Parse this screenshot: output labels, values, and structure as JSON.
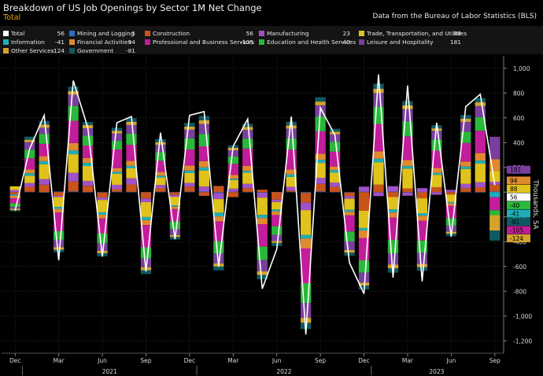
{
  "title": "Breakdown of US Job Openings by Sector 1M Net Change",
  "subtitle": "Total",
  "source": "Data from the Bureau of Labor Statistics (BLS)",
  "legend": [
    {
      "name": "Total",
      "value": "56",
      "color": "#ffffff"
    },
    {
      "name": "Mining and Logging",
      "value": "5",
      "color": "#2c6fbd"
    },
    {
      "name": "Construction",
      "value": "56",
      "color": "#c8541c"
    },
    {
      "name": "Manufacturing",
      "value": "23",
      "color": "#a052c8"
    },
    {
      "name": "Trade, Transportation, and Utilities",
      "value": "88",
      "color": "#e0c21c"
    },
    {
      "name": "Information",
      "value": "-41",
      "color": "#1eaeb8"
    },
    {
      "name": "Financial Activities",
      "value": "94",
      "color": "#e08a30"
    },
    {
      "name": "Professional and Business Services",
      "value": "-105",
      "color": "#c21d9a"
    },
    {
      "name": "Education and Health Services",
      "value": "-40",
      "color": "#2ab83a"
    },
    {
      "name": "Leisure and Hospitality",
      "value": "181",
      "color": "#7a3f9e"
    },
    {
      "name": "Other Services",
      "value": "-124",
      "color": "#d4a32a"
    },
    {
      "name": "Government",
      "value": "-81",
      "color": "#0f5a62"
    }
  ],
  "chart_data": {
    "type": "bar",
    "stacked": true,
    "ylabel": "Thousands, SA",
    "ylim": [
      -1300,
      1100
    ],
    "yticks": [
      -1200,
      -1000,
      -800,
      -600,
      -400,
      -200,
      0,
      200,
      400,
      600,
      800,
      1000
    ],
    "ytick_labels": [
      "-1,200",
      "-1,000",
      "-800",
      "-600",
      "-400",
      "-200",
      "0",
      "200",
      "400",
      "600",
      "800",
      "1,000"
    ],
    "month_labels": [
      "Dec",
      "Mar",
      "Jun",
      "Sep",
      "Dec",
      "Mar",
      "Jun",
      "Sep",
      "Dec",
      "Mar",
      "Jun",
      "Sep"
    ],
    "year_labels": [
      "2021",
      "2022",
      "2023"
    ],
    "categories": [
      "2020-12",
      "2021-01",
      "2021-02",
      "2021-03",
      "2021-04",
      "2021-05",
      "2021-06",
      "2021-07",
      "2021-08",
      "2021-09",
      "2021-10",
      "2021-11",
      "2021-12",
      "2022-01",
      "2022-02",
      "2022-03",
      "2022-04",
      "2022-05",
      "2022-06",
      "2022-07",
      "2022-08",
      "2022-09",
      "2022-10",
      "2022-11",
      "2022-12",
      "2023-01",
      "2023-02",
      "2023-03",
      "2023-04",
      "2023-05",
      "2023-06",
      "2023-07",
      "2023-08",
      "2023-09"
    ],
    "series": [
      {
        "name": "Mining and Logging",
        "values": [
          2,
          3,
          -4,
          5,
          6,
          1,
          -3,
          4,
          2,
          -1,
          3,
          -2,
          4,
          5,
          -6,
          3,
          2,
          -4,
          1,
          3,
          -5,
          6,
          2,
          -3,
          4,
          -2,
          3,
          -4,
          2,
          -1,
          3,
          2,
          -3,
          5
        ]
      },
      {
        "name": "Construction",
        "values": [
          -20,
          40,
          60,
          -30,
          80,
          50,
          -40,
          20,
          60,
          -50,
          30,
          -20,
          40,
          -30,
          50,
          -40,
          30,
          20,
          -60,
          10,
          -80,
          60,
          40,
          -30,
          -150,
          60,
          -40,
          30,
          -50,
          40,
          -20,
          30,
          40,
          56
        ]
      },
      {
        "name": "Manufacturing",
        "values": [
          15,
          30,
          45,
          -10,
          70,
          40,
          -20,
          35,
          50,
          -30,
          25,
          -15,
          30,
          40,
          -50,
          25,
          35,
          -40,
          -20,
          30,
          -60,
          50,
          35,
          -20,
          40,
          -30,
          45,
          -25,
          30,
          -20,
          15,
          35,
          40,
          23
        ]
      },
      {
        "name": "Trade, Transportation, and Utilities",
        "values": [
          30,
          60,
          120,
          -80,
          150,
          120,
          -100,
          90,
          80,
          -120,
          60,
          -70,
          80,
          130,
          -110,
          70,
          90,
          -140,
          -60,
          80,
          -200,
          120,
          80,
          -90,
          -140,
          180,
          -100,
          160,
          -120,
          100,
          -60,
          120,
          150,
          88
        ]
      },
      {
        "name": "Information",
        "values": [
          -10,
          20,
          25,
          -15,
          30,
          25,
          -20,
          15,
          20,
          -25,
          15,
          -10,
          20,
          25,
          -30,
          10,
          15,
          -25,
          -15,
          20,
          -30,
          25,
          20,
          -15,
          -20,
          30,
          -25,
          20,
          -20,
          15,
          -10,
          20,
          25,
          -41
        ]
      },
      {
        "name": "Financial Activities",
        "values": [
          -20,
          30,
          40,
          -30,
          60,
          40,
          -30,
          30,
          40,
          -40,
          30,
          -20,
          40,
          50,
          -40,
          30,
          40,
          -50,
          -30,
          40,
          -80,
          50,
          30,
          -30,
          -60,
          60,
          -40,
          50,
          -40,
          40,
          -20,
          40,
          60,
          94
        ]
      },
      {
        "name": "Professional and Business Services",
        "values": [
          -40,
          90,
          100,
          -150,
          180,
          100,
          -120,
          150,
          130,
          -180,
          90,
          -100,
          130,
          120,
          -160,
          90,
          140,
          -180,
          -90,
          160,
          -280,
          180,
          120,
          -130,
          -180,
          220,
          -180,
          190,
          -160,
          140,
          -100,
          150,
          180,
          -105
        ]
      },
      {
        "name": "Education and Health Services",
        "values": [
          -30,
          70,
          80,
          -70,
          120,
          80,
          -80,
          70,
          90,
          -90,
          70,
          -60,
          90,
          100,
          -100,
          60,
          80,
          -110,
          -70,
          90,
          -160,
          120,
          80,
          -80,
          -100,
          140,
          -110,
          120,
          -100,
          90,
          -60,
          90,
          110,
          -40
        ]
      },
      {
        "name": "Leisure and Hospitality",
        "values": [
          -15,
          60,
          50,
          -60,
          90,
          60,
          -60,
          60,
          70,
          -70,
          60,
          -50,
          70,
          80,
          -80,
          50,
          70,
          -90,
          -50,
          80,
          -120,
          90,
          60,
          -70,
          -80,
          110,
          -90,
          100,
          -90,
          70,
          -50,
          80,
          90,
          181
        ]
      },
      {
        "name": "Other Services",
        "values": [
          -10,
          20,
          25,
          -20,
          30,
          25,
          -20,
          20,
          25,
          -25,
          20,
          -15,
          25,
          30,
          -25,
          20,
          25,
          -30,
          -15,
          25,
          -40,
          30,
          20,
          -20,
          -25,
          35,
          -30,
          30,
          -25,
          20,
          -15,
          25,
          30,
          -124
        ]
      },
      {
        "name": "Government",
        "values": [
          -10,
          25,
          30,
          -20,
          35,
          25,
          -25,
          25,
          30,
          -30,
          25,
          -20,
          30,
          35,
          -30,
          20,
          25,
          -35,
          -25,
          30,
          -50,
          35,
          25,
          -25,
          -30,
          40,
          -35,
          35,
          -30,
          25,
          -20,
          30,
          35,
          -81
        ]
      }
    ],
    "total": {
      "name": "Total",
      "values": [
        -150,
        350,
        620,
        -550,
        900,
        520,
        -520,
        560,
        610,
        -640,
        480,
        -380,
        620,
        650,
        -600,
        370,
        590,
        -780,
        -460,
        610,
        -1150,
        680,
        460,
        -570,
        -820,
        950,
        -690,
        860,
        -720,
        560,
        -360,
        690,
        790,
        56
      ]
    },
    "last_value_labels": [
      "181",
      "94",
      "88",
      "56",
      "-40",
      "-41",
      "-105",
      "-124",
      "-81"
    ]
  }
}
